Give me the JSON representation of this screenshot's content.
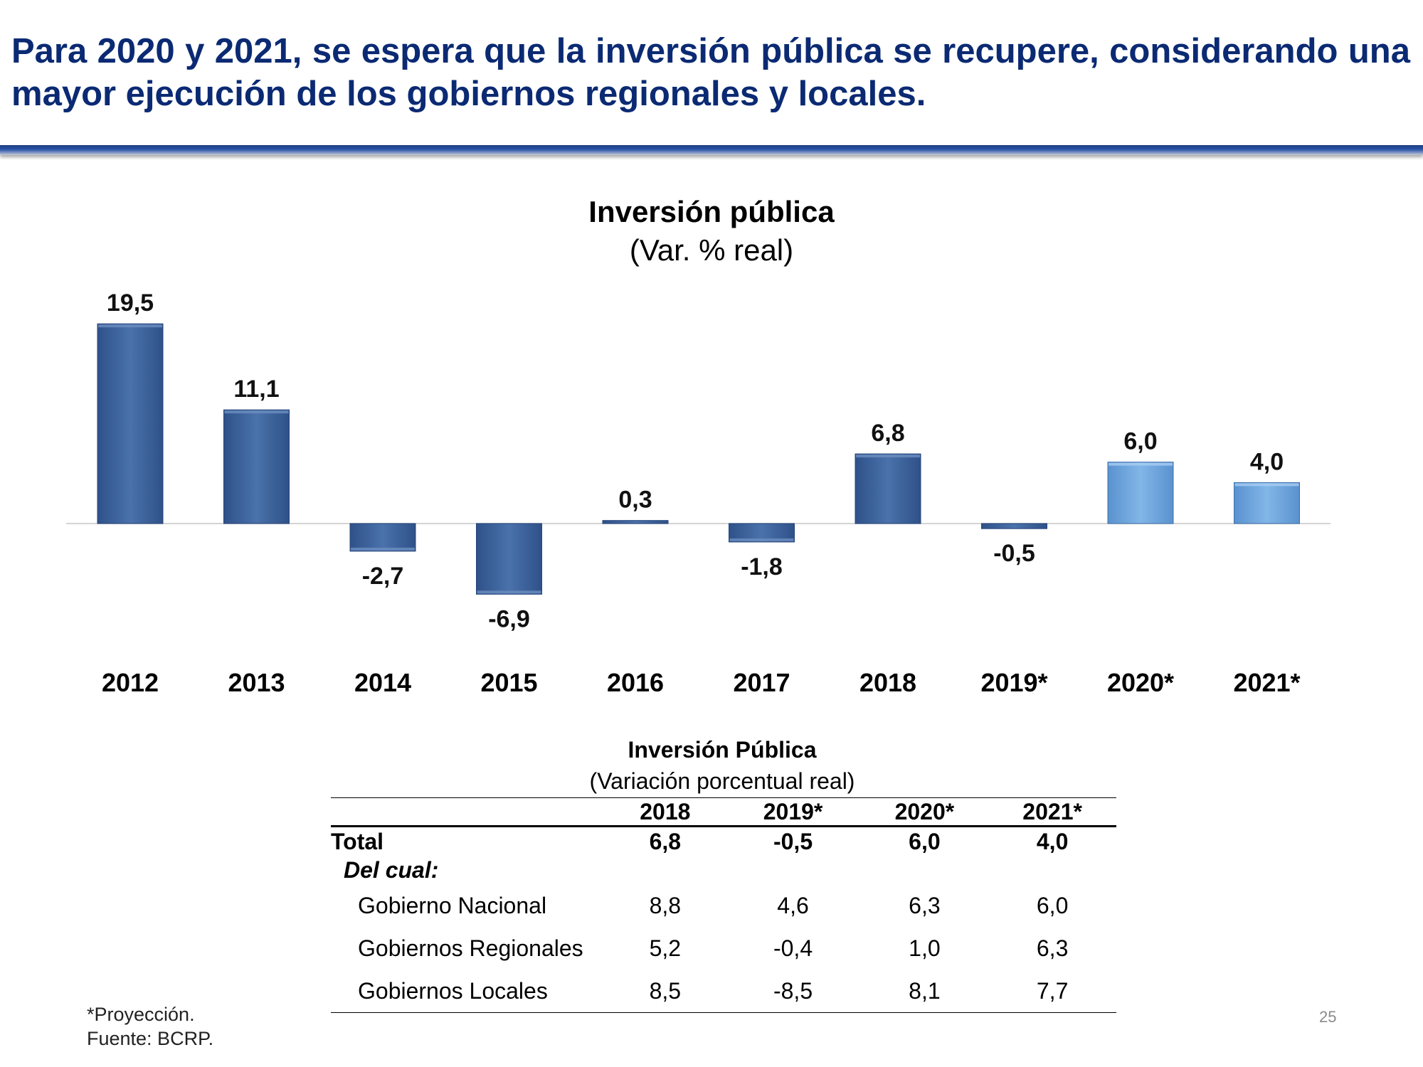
{
  "slide": {
    "title": "Para 2020 y 2021, se espera que la inversión pública se recupere, considerando una mayor ejecución de los gobiernos regionales y locales.",
    "page_number": "25",
    "footnote_projection": "*Proyección.",
    "footnote_source": "Fuente: BCRP."
  },
  "colors": {
    "title": "#0b2a73",
    "bar_actual": "#3f649b",
    "bar_projection": "#6fa6de",
    "header_bar": "#1b3c82"
  },
  "chart_data": {
    "type": "bar",
    "title": "Inversión pública",
    "subtitle": "(Var. % real)",
    "categories": [
      "2012",
      "2013",
      "2014",
      "2015",
      "2016",
      "2017",
      "2018",
      "2019*",
      "2020*",
      "2021*"
    ],
    "values": [
      19.5,
      11.1,
      -2.7,
      -6.9,
      0.3,
      -1.8,
      6.8,
      -0.5,
      6.0,
      4.0
    ],
    "value_labels": [
      "19,5",
      "11,1",
      "-2,7",
      "-6,9",
      "0,3",
      "-1,8",
      "6,8",
      "-0,5",
      "6,0",
      "4,0"
    ],
    "projection": [
      false,
      false,
      false,
      false,
      false,
      false,
      false,
      false,
      true,
      true
    ],
    "xlabel": "",
    "ylabel": "",
    "ylim": [
      -6.9,
      19.5
    ],
    "grid": false,
    "legend": "none"
  },
  "table": {
    "title": "Inversión Pública",
    "subtitle": "(Variación porcentual real)",
    "columns": [
      "2018",
      "2019*",
      "2020*",
      "2021*"
    ],
    "total": {
      "label": "Total",
      "values": [
        "6,8",
        "-0,5",
        "6,0",
        "4,0"
      ]
    },
    "subhead": "Del cual:",
    "rows": [
      {
        "label": "Gobierno Nacional",
        "values": [
          "8,8",
          "4,6",
          "6,3",
          "6,0"
        ]
      },
      {
        "label": "Gobiernos Regionales",
        "values": [
          "5,2",
          "-0,4",
          "1,0",
          "6,3"
        ]
      },
      {
        "label": "Gobiernos Locales",
        "values": [
          "8,5",
          "-8,5",
          "8,1",
          "7,7"
        ]
      }
    ]
  }
}
